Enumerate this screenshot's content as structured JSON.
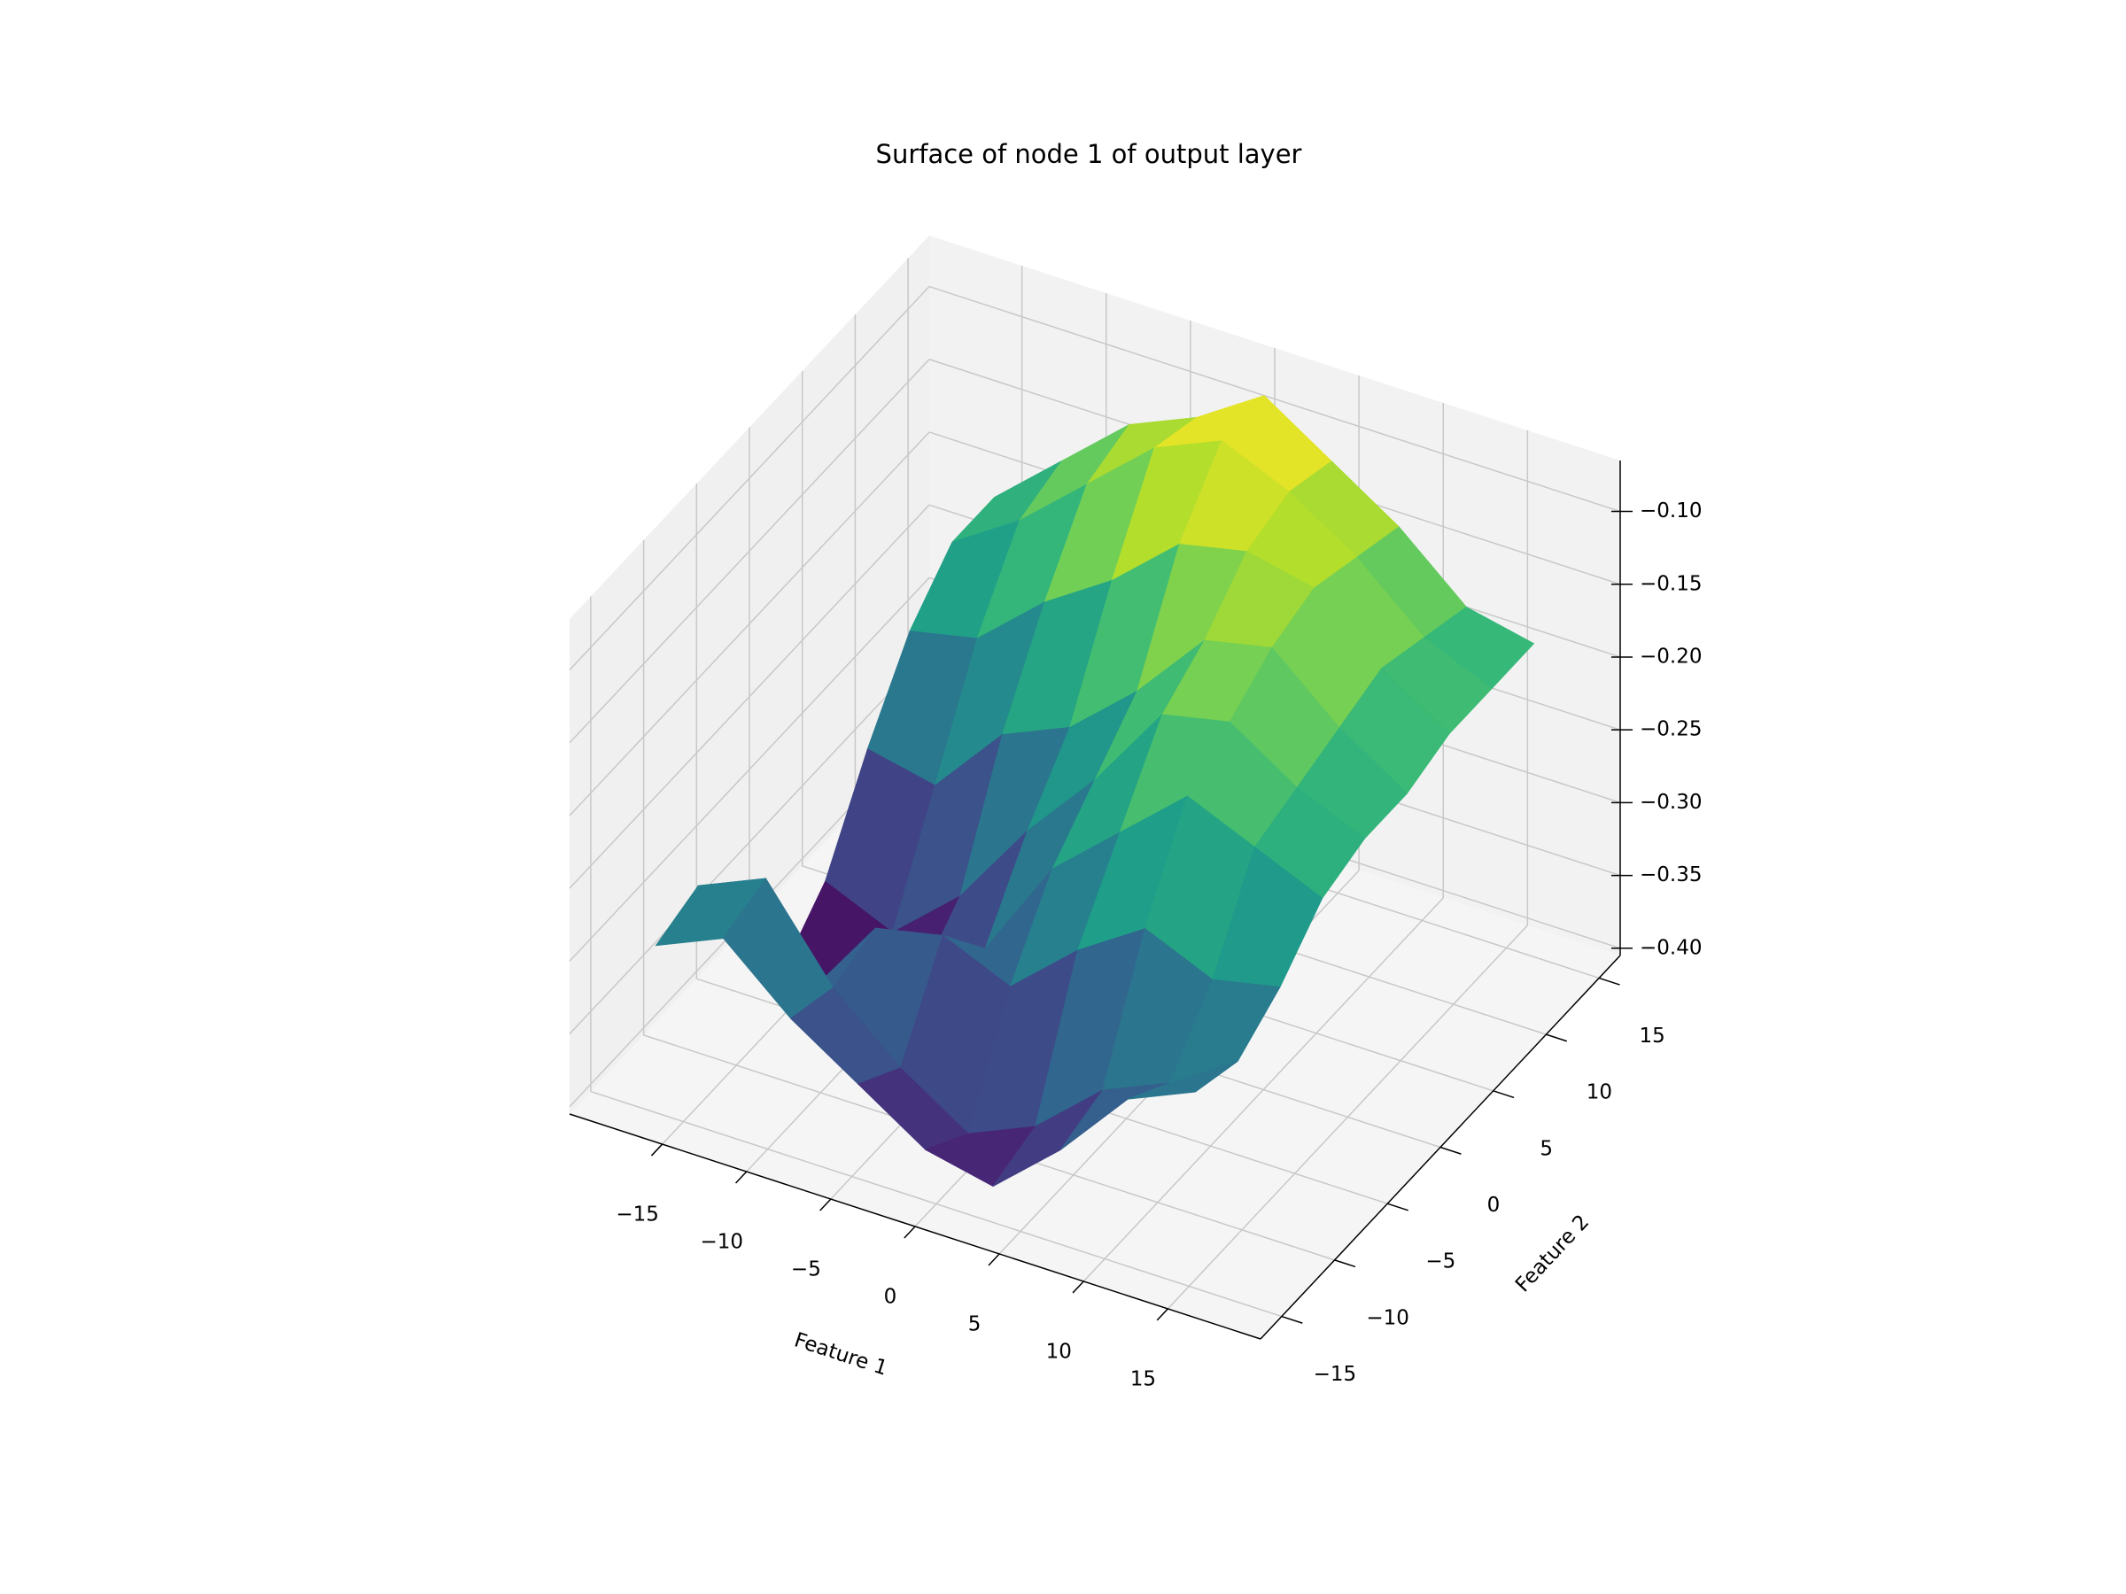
{
  "chart_data": {
    "type": "surface3d",
    "title": "Surface of node 1 of output layer",
    "xlabel": "Feature 1",
    "ylabel": "Feature 2",
    "colormap": "viridis",
    "x": [
      -16,
      -12,
      -8,
      -4,
      0,
      4,
      8,
      12,
      16
    ],
    "y": [
      -16,
      -12,
      -8,
      -4,
      0,
      4,
      8,
      12,
      16
    ],
    "z": [
      [
        -0.28,
        -0.26,
        -0.3,
        -0.33,
        -0.36,
        -0.37,
        -0.33,
        -0.28,
        -0.26
      ],
      [
        -0.27,
        -0.25,
        -0.31,
        -0.35,
        -0.38,
        -0.36,
        -0.32,
        -0.3,
        -0.27
      ],
      [
        -0.33,
        -0.36,
        -0.3,
        -0.29,
        -0.31,
        -0.27,
        -0.24,
        -0.26,
        -0.25
      ],
      [
        -0.39,
        -0.4,
        -0.37,
        -0.33,
        -0.26,
        -0.22,
        -0.18,
        -0.2,
        -0.22
      ],
      [
        -0.36,
        -0.38,
        -0.34,
        -0.28,
        -0.23,
        -0.17,
        -0.16,
        -0.19,
        -0.21
      ],
      [
        -0.3,
        -0.31,
        -0.26,
        -0.24,
        -0.2,
        -0.15,
        -0.14,
        -0.18,
        -0.21
      ],
      [
        -0.25,
        -0.24,
        -0.2,
        -0.17,
        -0.13,
        -0.12,
        -0.13,
        -0.17,
        -0.2
      ],
      [
        -0.22,
        -0.19,
        -0.15,
        -0.11,
        -0.09,
        -0.11,
        -0.14,
        -0.18,
        -0.2
      ],
      [
        -0.22,
        -0.18,
        -0.14,
        -0.12,
        -0.09,
        -0.12,
        -0.15,
        -0.19,
        -0.2
      ]
    ],
    "xlim": [
      -20.5,
      20.5
    ],
    "ylim": [
      -17,
      17
    ],
    "zlim": [
      -0.405,
      -0.065
    ],
    "xticks": [
      {
        "value": -15,
        "label": "−15"
      },
      {
        "value": -10,
        "label": "−10"
      },
      {
        "value": -5,
        "label": "−5"
      },
      0,
      5,
      10,
      15
    ],
    "yticks": [
      {
        "value": -15,
        "label": "−15"
      },
      {
        "value": -10,
        "label": "−10"
      },
      {
        "value": -5,
        "label": "−5"
      },
      0,
      5,
      10,
      15
    ],
    "zticks": [
      {
        "value": -0.4,
        "label": "−0.40"
      },
      {
        "value": -0.35,
        "label": "−0.35"
      },
      {
        "value": -0.3,
        "label": "−0.30"
      },
      {
        "value": -0.25,
        "label": "−0.25"
      },
      {
        "value": -0.2,
        "label": "−0.20"
      },
      {
        "value": -0.15,
        "label": "−0.15"
      },
      {
        "value": -0.1,
        "label": "−0.10"
      }
    ],
    "grid": true
  }
}
